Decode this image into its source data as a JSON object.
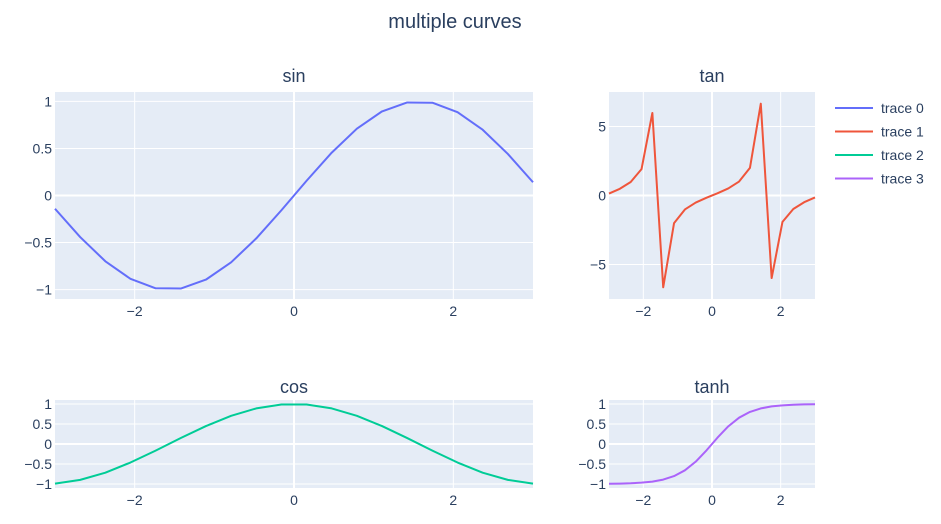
{
  "title": "multiple curves",
  "legend_position": "top-right",
  "plot_bgcolor": "#e5ecf6",
  "grid": true,
  "chart_data": [
    {
      "type": "line",
      "title": "sin",
      "xlim": [
        -3,
        3
      ],
      "ylim": [
        -1.1,
        1.1
      ],
      "xticks": [
        -2,
        0,
        2
      ],
      "xtick_labels": [
        "−2",
        "0",
        "2"
      ],
      "yticks": [
        1,
        0.5,
        0,
        -0.5,
        -1
      ],
      "ytick_labels": [
        "1",
        "0.5",
        "0",
        "−0.5",
        "−1"
      ],
      "series": [
        {
          "name": "trace 0",
          "color": "#636efa",
          "x": [
            -3,
            -2.684,
            -2.368,
            -2.053,
            -1.737,
            -1.421,
            -1.105,
            -0.789,
            -0.474,
            -0.158,
            0.158,
            0.474,
            0.789,
            1.105,
            1.421,
            1.737,
            2.053,
            2.368,
            2.684,
            3
          ],
          "y": [
            -0.141,
            -0.442,
            -0.699,
            -0.886,
            -0.986,
            -0.989,
            -0.894,
            -0.71,
            -0.456,
            -0.157,
            0.157,
            0.456,
            0.71,
            0.894,
            0.989,
            0.986,
            0.886,
            0.699,
            0.442,
            0.141
          ]
        }
      ]
    },
    {
      "type": "line",
      "title": "tan",
      "xlim": [
        -3,
        3
      ],
      "ylim": [
        -7.5,
        7.5
      ],
      "xticks": [
        -2,
        0,
        2
      ],
      "xtick_labels": [
        "−2",
        "0",
        "2"
      ],
      "yticks": [
        5,
        0,
        -5
      ],
      "ytick_labels": [
        "5",
        "0",
        "−5"
      ],
      "series": [
        {
          "name": "trace 1",
          "color": "#ef553b",
          "x": [
            -3,
            -2.684,
            -2.368,
            -2.053,
            -1.737,
            -1.421,
            -1.105,
            -0.789,
            -0.474,
            -0.158,
            0.158,
            0.474,
            0.789,
            1.105,
            1.421,
            1.737,
            2.053,
            2.368,
            2.684,
            3
          ],
          "y": [
            0.143,
            0.487,
            0.98,
            1.911,
            5.98,
            -6.653,
            -1.998,
            -1.01,
            -0.513,
            -0.159,
            0.159,
            0.513,
            1.01,
            1.998,
            6.653,
            -5.98,
            -1.911,
            -0.98,
            -0.487,
            -0.143
          ]
        }
      ]
    },
    {
      "type": "line",
      "title": "cos",
      "xlim": [
        -3,
        3
      ],
      "ylim": [
        -1.1,
        1.1
      ],
      "xticks": [
        -2,
        0,
        2
      ],
      "xtick_labels": [
        "−2",
        "0",
        "2"
      ],
      "yticks": [
        1,
        0.5,
        0,
        -0.5,
        -1
      ],
      "ytick_labels": [
        "1",
        "0.5",
        "0",
        "−0.5",
        "−1"
      ],
      "series": [
        {
          "name": "trace 2",
          "color": "#00cc96",
          "x": [
            -3,
            -2.684,
            -2.368,
            -2.053,
            -1.737,
            -1.421,
            -1.105,
            -0.789,
            -0.474,
            -0.158,
            0.158,
            0.474,
            0.789,
            1.105,
            1.421,
            1.737,
            2.053,
            2.368,
            2.684,
            3
          ],
          "y": [
            -0.99,
            -0.897,
            -0.717,
            -0.463,
            -0.165,
            0.149,
            0.449,
            0.704,
            0.89,
            0.988,
            0.988,
            0.89,
            0.704,
            0.449,
            0.149,
            -0.165,
            -0.463,
            -0.717,
            -0.897,
            -0.99
          ]
        }
      ]
    },
    {
      "type": "line",
      "title": "tanh",
      "xlim": [
        -3,
        3
      ],
      "ylim": [
        -1.1,
        1.1
      ],
      "xticks": [
        -2,
        0,
        2
      ],
      "xtick_labels": [
        "−2",
        "0",
        "2"
      ],
      "yticks": [
        1,
        0.5,
        0,
        -0.5,
        -1
      ],
      "ytick_labels": [
        "1",
        "0.5",
        "0",
        "−0.5",
        "−1"
      ],
      "series": [
        {
          "name": "trace 3",
          "color": "#ab63fa",
          "x": [
            -3,
            -2.684,
            -2.368,
            -2.053,
            -1.737,
            -1.421,
            -1.105,
            -0.789,
            -0.474,
            -0.158,
            0.158,
            0.474,
            0.789,
            1.105,
            1.421,
            1.737,
            2.053,
            2.368,
            2.684,
            3
          ],
          "y": [
            -0.995,
            -0.991,
            -0.982,
            -0.967,
            -0.94,
            -0.89,
            -0.802,
            -0.658,
            -0.441,
            -0.157,
            0.157,
            0.441,
            0.658,
            0.802,
            0.89,
            0.94,
            0.967,
            0.982,
            0.991,
            0.995
          ]
        }
      ]
    }
  ]
}
